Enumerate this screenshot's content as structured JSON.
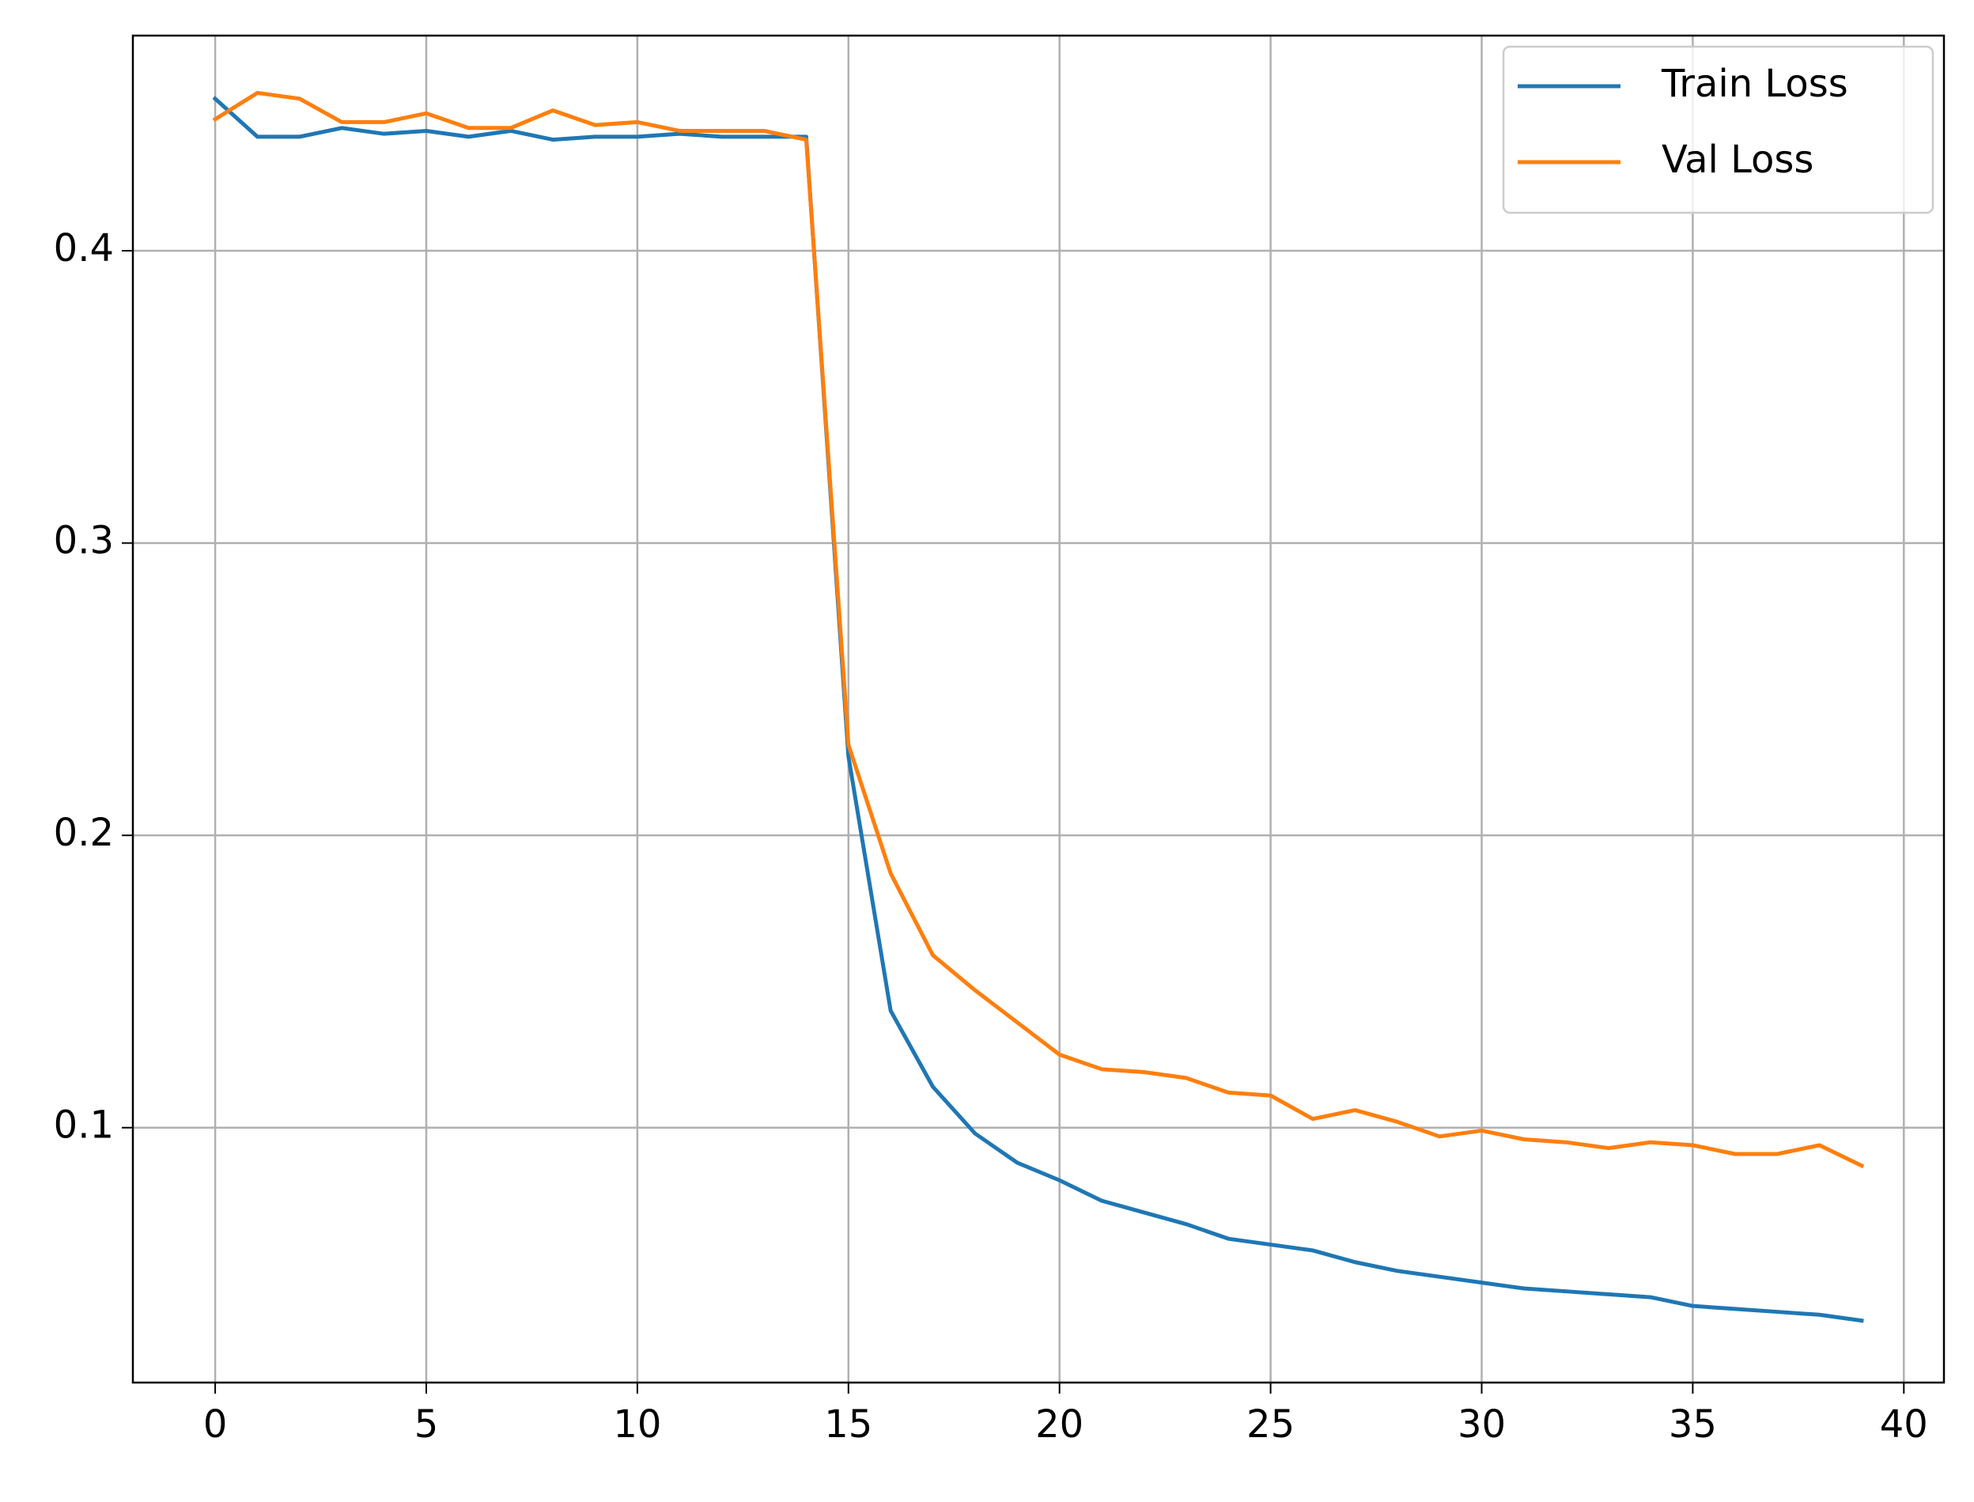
{
  "chart_data": {
    "type": "line",
    "x": [
      0,
      1,
      2,
      3,
      4,
      5,
      6,
      7,
      8,
      9,
      10,
      11,
      12,
      13,
      14,
      15,
      16,
      17,
      18,
      19,
      20,
      21,
      22,
      23,
      24,
      25,
      26,
      27,
      28,
      29,
      30,
      31,
      32,
      33,
      34,
      35,
      36,
      37,
      38,
      39
    ],
    "series": [
      {
        "name": "Train Loss",
        "color": "#1f77b4",
        "values": [
          0.452,
          0.439,
          0.439,
          0.442,
          0.44,
          0.441,
          0.439,
          0.441,
          0.438,
          0.439,
          0.439,
          0.44,
          0.439,
          0.439,
          0.439,
          0.227,
          0.14,
          0.114,
          0.098,
          0.088,
          0.082,
          0.075,
          0.071,
          0.067,
          0.062,
          0.06,
          0.058,
          0.054,
          0.051,
          0.049,
          0.047,
          0.045,
          0.044,
          0.043,
          0.042,
          0.039,
          0.038,
          0.037,
          0.036,
          0.034
        ]
      },
      {
        "name": "Val Loss",
        "color": "#ff7f0e",
        "values": [
          0.445,
          0.454,
          0.452,
          0.444,
          0.444,
          0.447,
          0.442,
          0.442,
          0.448,
          0.443,
          0.444,
          0.441,
          0.441,
          0.441,
          0.438,
          0.231,
          0.187,
          0.159,
          0.147,
          0.136,
          0.125,
          0.12,
          0.119,
          0.117,
          0.112,
          0.111,
          0.103,
          0.106,
          0.102,
          0.097,
          0.099,
          0.096,
          0.095,
          0.093,
          0.095,
          0.094,
          0.091,
          0.091,
          0.094,
          0.087
        ]
      }
    ],
    "xlim": [
      -1.95,
      40.95
    ],
    "xticks": [
      0,
      5,
      10,
      15,
      20,
      25,
      30,
      35,
      40
    ],
    "ylim": [
      0.0128,
      0.4736
    ],
    "yticks": [
      0.1,
      0.2,
      0.3,
      0.4
    ],
    "grid": true,
    "legend": "upper right"
  }
}
